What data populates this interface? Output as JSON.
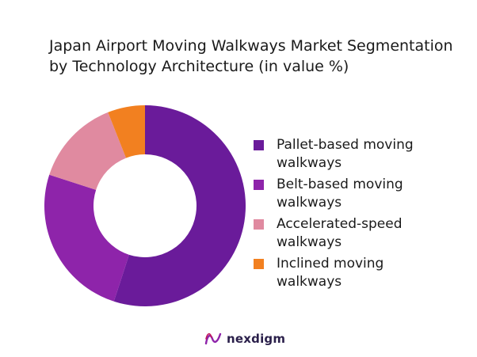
{
  "chart_data": {
    "type": "pie",
    "donut": true,
    "title": "Japan Airport Moving Walkways Market Segmentation by Technology Architecture (in value %)",
    "categories": [
      "Pallet-based moving walkways",
      "Belt-based moving walkways",
      "Accelerated-speed walkways",
      "Inclined moving walkways"
    ],
    "values": [
      55,
      25,
      14,
      6
    ],
    "colors": [
      "#6a1b9a",
      "#8e24aa",
      "#e08aa0",
      "#f28020"
    ],
    "legend_position": "right"
  },
  "branding": {
    "logo_text": "nexdigm"
  }
}
